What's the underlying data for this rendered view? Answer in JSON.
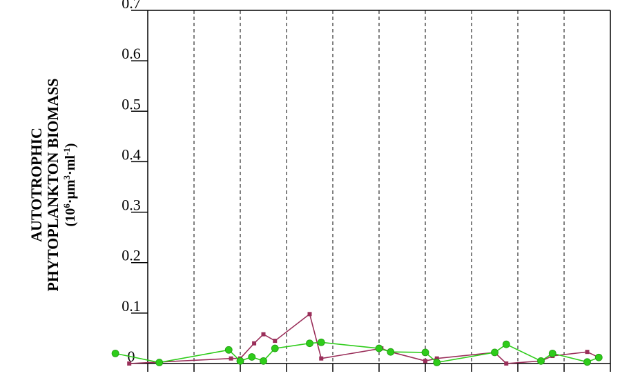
{
  "chart_data": {
    "type": "line",
    "title": "",
    "ylabel_lines": [
      "AUTOTROPHIC",
      "PHYTOPLANKTON BIOMASS"
    ],
    "ylabel_unit": {
      "open": "(10",
      "sup1": "6",
      "mid": "·µm",
      "sup2": "3",
      "dot": "·ml",
      "sup3": "-1",
      "close": ")"
    },
    "ylim": [
      0,
      0.7
    ],
    "yticks": [
      0,
      0.1,
      0.2,
      0.3,
      0.4,
      0.5,
      0.6,
      0.7
    ],
    "ytick_labels": [
      "0",
      "0.1",
      "0.2",
      "0.3",
      "0.4",
      "0.5",
      "0.6",
      "0.7"
    ],
    "xlim": [
      0,
      10
    ],
    "vertical_dashed_gridlines_at": [
      1,
      2,
      3,
      4,
      5,
      6,
      7,
      8,
      9
    ],
    "series": [
      {
        "color": "#9a2f5a",
        "marker": "square",
        "points": [
          [
            -0.4,
            0.0
          ],
          [
            1.8,
            0.01
          ],
          [
            2.0,
            0.01
          ],
          [
            2.3,
            0.04
          ],
          [
            2.5,
            0.058
          ],
          [
            2.75,
            0.045
          ],
          [
            3.5,
            0.098
          ],
          [
            3.75,
            0.01
          ],
          [
            5.05,
            0.03
          ],
          [
            5.25,
            0.023
          ],
          [
            6.0,
            0.005
          ],
          [
            6.25,
            0.01
          ],
          [
            7.5,
            0.022
          ],
          [
            7.75,
            0.0
          ],
          [
            8.5,
            0.005
          ],
          [
            8.75,
            0.015
          ],
          [
            9.5,
            0.023
          ],
          [
            9.75,
            0.012
          ]
        ]
      },
      {
        "color": "#2ecc1a",
        "marker": "filled-circle",
        "points": [
          [
            -0.7,
            0.02
          ],
          [
            0.25,
            0.002
          ],
          [
            1.75,
            0.027
          ],
          [
            2.0,
            0.005
          ],
          [
            2.25,
            0.013
          ],
          [
            2.5,
            0.005
          ],
          [
            2.75,
            0.03
          ],
          [
            3.5,
            0.04
          ],
          [
            3.75,
            0.042
          ],
          [
            5.0,
            0.03
          ],
          [
            5.25,
            0.023
          ],
          [
            6.0,
            0.022
          ],
          [
            6.25,
            0.002
          ],
          [
            7.5,
            0.022
          ],
          [
            7.75,
            0.038
          ],
          [
            8.5,
            0.005
          ],
          [
            8.75,
            0.02
          ],
          [
            9.5,
            0.003
          ],
          [
            9.75,
            0.012
          ]
        ]
      }
    ]
  }
}
